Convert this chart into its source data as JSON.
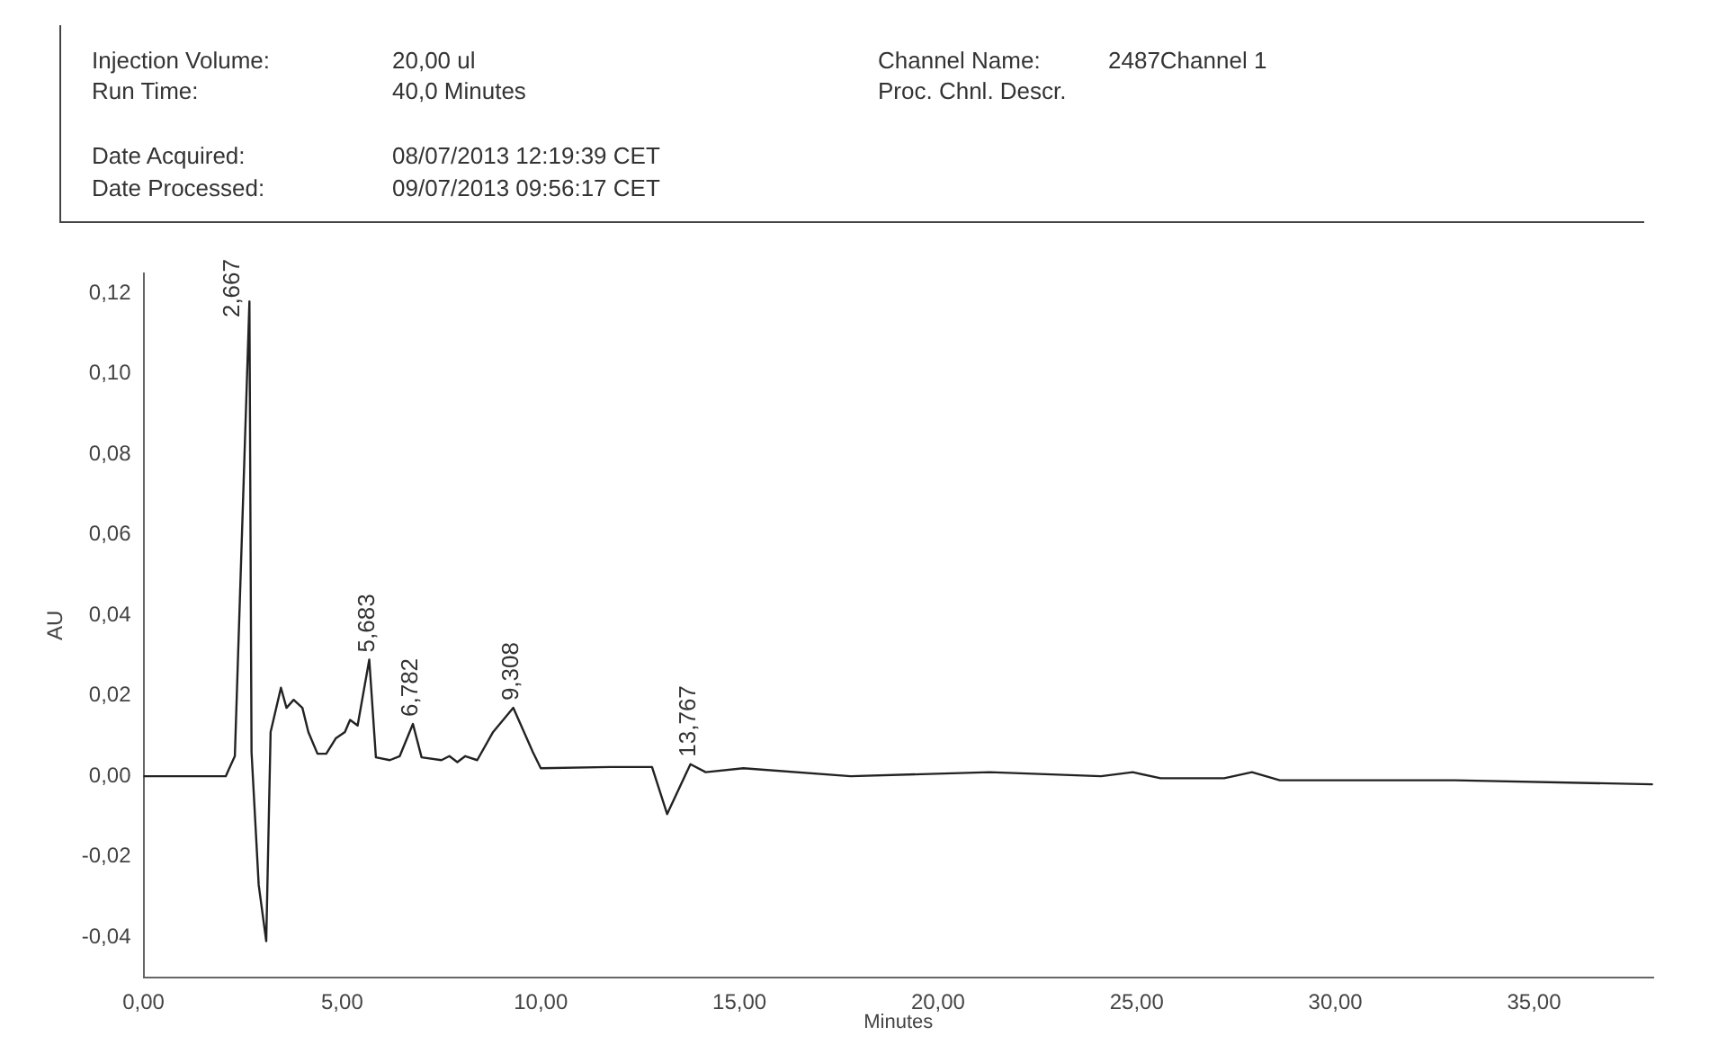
{
  "chart_data": {
    "type": "line",
    "xlabel": "Minutes",
    "ylabel": "AU",
    "x": [
      0,
      2.07,
      2.3,
      2.667,
      2.72,
      2.9,
      3.09,
      3.2,
      3.46,
      3.6,
      3.78,
      4.0,
      4.15,
      4.38,
      4.6,
      4.84,
      5.07,
      5.2,
      5.39,
      5.683,
      5.85,
      6.2,
      6.45,
      6.782,
      7.0,
      7.5,
      7.7,
      7.9,
      8.1,
      8.4,
      8.8,
      9.308,
      9.8,
      10.0,
      11.75,
      12.8,
      13.18,
      13.767,
      14.15,
      15.1,
      17.8,
      21.3,
      24.1,
      24.9,
      25.6,
      27.2,
      27.9,
      28.6,
      33.0,
      37.97
    ],
    "series": [
      {
        "color": "#222222",
        "values": [
          0,
          0,
          0.005,
          0.118,
          0.006,
          -0.027,
          -0.041,
          0.011,
          0.022,
          0.017,
          0.019,
          0.017,
          0.011,
          0.0056,
          0.0056,
          0.0094,
          0.011,
          0.014,
          0.0126,
          0.029,
          0.0047,
          0.004,
          0.005,
          0.013,
          0.0047,
          0.004,
          0.005,
          0.0035,
          0.005,
          0.004,
          0.011,
          0.017,
          0.006,
          0.002,
          0.0023,
          0.0023,
          -0.0094,
          0.003,
          0.001,
          0.002,
          0,
          0.001,
          0,
          0.001,
          -0.0005,
          -0.0005,
          0.001,
          -0.001,
          -0.001,
          -0.002
        ]
      }
    ],
    "xlim": [
      0,
      38
    ],
    "xticks": [
      {
        "value": 0,
        "label": "0,00"
      },
      {
        "value": 5,
        "label": "5,00"
      },
      {
        "value": 10,
        "label": "10,00"
      },
      {
        "value": 15,
        "label": "15,00"
      },
      {
        "value": 20,
        "label": "20,00"
      },
      {
        "value": 25,
        "label": "25,00"
      },
      {
        "value": 30,
        "label": "30,00"
      },
      {
        "value": 35,
        "label": "35,00"
      }
    ],
    "ylim": [
      -0.05,
      0.125
    ],
    "yticks": [
      {
        "value": -0.04,
        "label": "-0,04"
      },
      {
        "value": -0.02,
        "label": "-0,02"
      },
      {
        "value": 0,
        "label": "0,00"
      },
      {
        "value": 0.02,
        "label": "0,02"
      },
      {
        "value": 0.04,
        "label": "0,04"
      },
      {
        "value": 0.06,
        "label": "0,06"
      },
      {
        "value": 0.08,
        "label": "0,08"
      },
      {
        "value": 0.1,
        "label": "0,10"
      },
      {
        "value": 0.12,
        "label": "0,12"
      }
    ],
    "grid": false,
    "legend": false,
    "marker": "none",
    "line_style": "solid",
    "annotations": [
      "Injection Volume:",
      "20,00 ul",
      "Run Time:",
      "40,0 Minutes",
      "Date Acquired:",
      "08/07/2013 12:19:39 CET",
      "Date Processed:",
      "09/07/2013 09:56:17 CET",
      "Channel Name:",
      "2487Channel 1",
      "Proc. Chnl. Descr.",
      {
        "text": "2,667",
        "x": 2.667,
        "y": 0.118
      },
      {
        "text": "5,683",
        "x": 5.683,
        "y": 0.029
      },
      {
        "text": "6,782",
        "x": 6.782,
        "y": 0.013
      },
      {
        "text": "9,308",
        "x": 9.308,
        "y": 0.017
      },
      {
        "text": "13,767",
        "x": 13.767,
        "y": 0.003
      }
    ]
  }
}
